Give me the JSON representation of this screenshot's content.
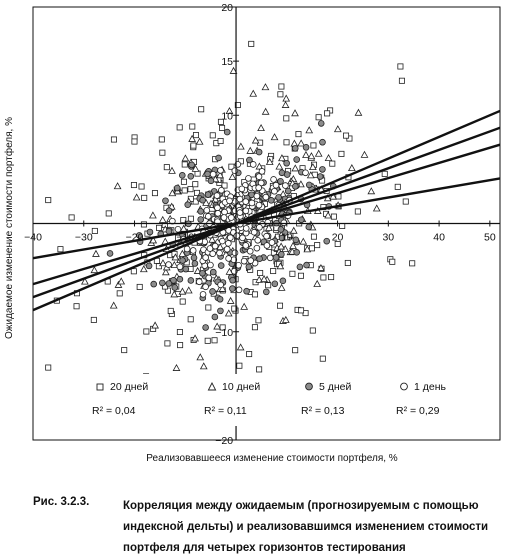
{
  "chart_data": {
    "type": "scatter",
    "xlabel": "Реализовавшееся изменение стоимости портфеля, %",
    "ylabel": "Ожидаемое изменение стоимости портфеля, %",
    "xlim": [
      -40,
      52
    ],
    "ylim": [
      -20,
      20
    ],
    "x_ticks": [
      -40,
      -30,
      -20,
      -10,
      10,
      20,
      30,
      40,
      50
    ],
    "y_ticks": [
      -20,
      -10,
      10,
      15,
      20
    ],
    "series": [
      {
        "name": "20 дней",
        "marker": "square",
        "fill": "#ffffff",
        "r2_label": "R² = 0,04",
        "fit": {
          "slope": 0.08,
          "intercept": 0.0
        },
        "seed": 11,
        "n": 260,
        "spread_x": 14,
        "noise": 6.0
      },
      {
        "name": "10 дней",
        "marker": "triangle",
        "fill": "#ffffff",
        "r2_label": "R² = 0,11",
        "fit": {
          "slope": 0.14,
          "intercept": 0.0
        },
        "seed": 23,
        "n": 200,
        "spread_x": 11,
        "noise": 4.6
      },
      {
        "name": "5 дней",
        "marker": "circle",
        "fill": "#8c8c8c",
        "r2_label": "R² = 0,13",
        "fit": {
          "slope": 0.17,
          "intercept": 0.0
        },
        "seed": 37,
        "n": 200,
        "spread_x": 8,
        "noise": 3.6
      },
      {
        "name": "1 день",
        "marker": "circle",
        "fill": "#ffffff",
        "r2_label": "R² = 0,29",
        "fit": {
          "slope": 0.2,
          "intercept": 0.0
        },
        "seed": 53,
        "n": 230,
        "spread_x": 5,
        "noise": 2.2
      }
    ]
  },
  "caption": {
    "label": "Рис. 3.2.3.",
    "text": "Корреляция между ожидаемым (прогнозируемым с помощью индексной дельты) и реализовавшимся изменением стоимости портфеля для четырех горизонтов тестирования"
  }
}
